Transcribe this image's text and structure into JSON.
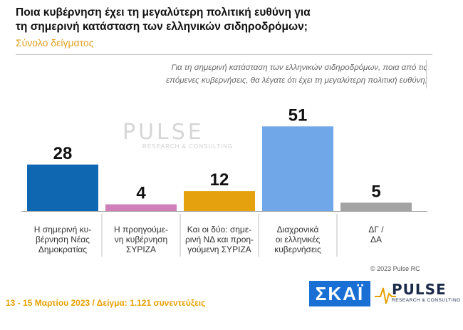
{
  "header": {
    "title_line1": "Ποια κυβέρνηση έχει τη μεγαλύτερη πολιτική ευθύνη για",
    "title_line2": "τη σημερινή κατάσταση των ελληνικών σιδηροδρόμων;",
    "subtitle": "Σύνολο δείγματος"
  },
  "question": {
    "line1": "Για τη σημερινή κατάσταση των ελληνικών σιδηροδρόμων, ποια από τις",
    "line2": "επόμενες κυβερνήσεις, θα λέγατε ότι έχει τη μεγαλύτερη πολιτική ευθύνη;"
  },
  "watermark": {
    "text": "PULSE",
    "sub": "RESEARCH & CONSULTING"
  },
  "chart_data": {
    "type": "bar",
    "title": "Ποια κυβέρνηση έχει τη μεγαλύτερη πολιτική ευθύνη για τη σημερινή κατάσταση των ελληνικών σιδηροδρόμων;",
    "categories": [
      [
        "Η σημερινή κυ-",
        "βέρνηση Νέας",
        "Δημοκρατίας"
      ],
      [
        "Η προηγούμε-",
        "νη κυβέρνηση",
        "ΣΥΡΙΖΑ"
      ],
      [
        "Και οι δύο: σημε-",
        "ρινή ΝΔ και προη-",
        "γούμενη ΣΥΡΙΖΑ"
      ],
      [
        "Διαχρονικά",
        "οι ελληνικές",
        "κυβερνήσεις"
      ],
      [
        "ΔΓ /",
        "ΔΑ"
      ]
    ],
    "values": [
      28,
      4,
      12,
      51,
      5
    ],
    "colors": [
      "#0f67b1",
      "#d17fb8",
      "#e6a20e",
      "#6fa7e8",
      "#a3a3a3"
    ],
    "ylim": [
      0,
      55
    ]
  },
  "copyright": "© 2023 Pulse RC",
  "footer": "13 - 15  Μαρτίου  2023  /  Δείγμα:  1.121  συνεντεύξεις",
  "logos": {
    "skai": "ΣΚΑΪ",
    "pulse": "PULSE",
    "pulse_sub": "RESEARCH & CONSULTING"
  }
}
